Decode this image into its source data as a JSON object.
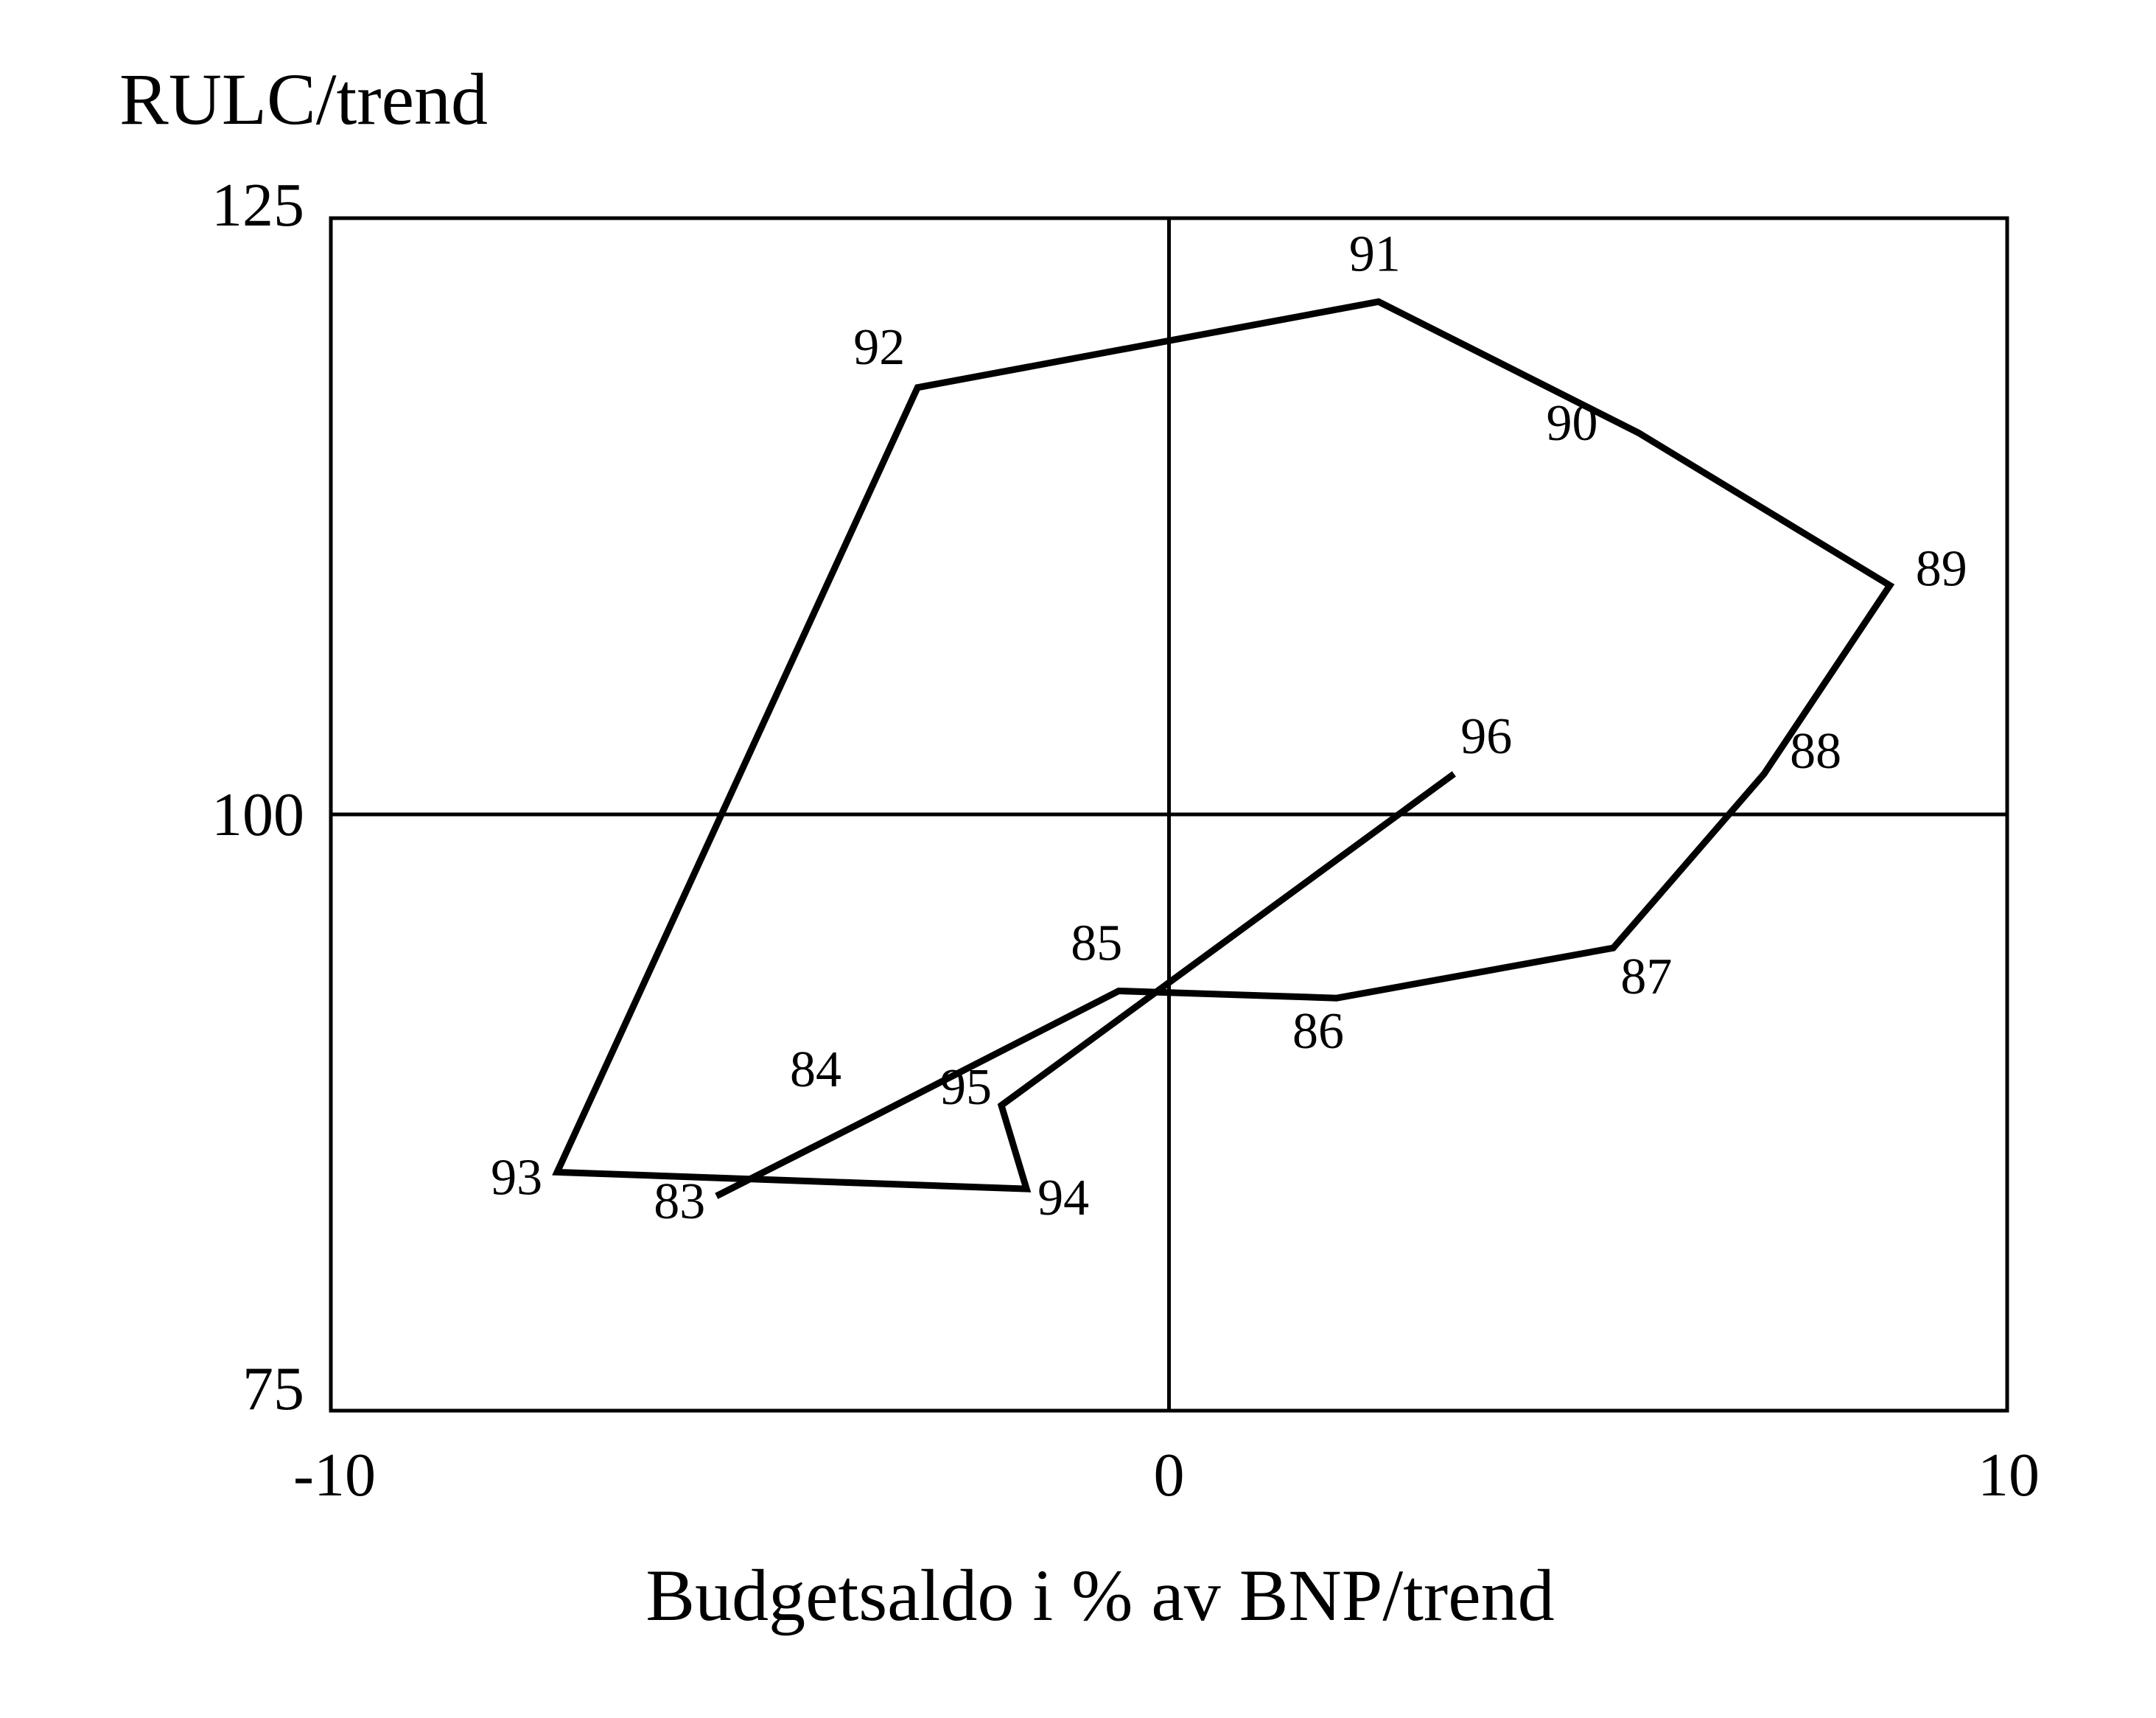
{
  "chart_data": {
    "type": "line",
    "ylabel": "RULC/trend",
    "xlabel": "Budgetsaldo i % av BNP/trend",
    "xlim": [
      -10,
      10
    ],
    "ylim": [
      75,
      125
    ],
    "x_ticks": [
      {
        "value": -10,
        "label": "-10"
      },
      {
        "value": 0,
        "label": "0"
      },
      {
        "value": 10,
        "label": "10"
      }
    ],
    "y_ticks": [
      {
        "value": 75,
        "label": "75"
      },
      {
        "value": 100,
        "label": "100"
      },
      {
        "value": 125,
        "label": "125"
      }
    ],
    "reference_lines": {
      "x": 0,
      "y": 100
    },
    "grid": false,
    "legend": "none",
    "line_color": "#000000",
    "series": [
      {
        "points": [
          {
            "label": "83",
            "x": -5.4,
            "y": 84.0
          },
          {
            "label": "84",
            "x": -3.6,
            "y": 87.2
          },
          {
            "label": "85",
            "x": -0.6,
            "y": 92.6
          },
          {
            "label": "86",
            "x": 2.0,
            "y": 92.3
          },
          {
            "label": "87",
            "x": 5.3,
            "y": 94.4
          },
          {
            "label": "88",
            "x": 7.1,
            "y": 101.7
          },
          {
            "label": "89",
            "x": 8.6,
            "y": 109.6
          },
          {
            "label": "90",
            "x": 5.6,
            "y": 116.0
          },
          {
            "label": "91",
            "x": 2.5,
            "y": 121.5
          },
          {
            "label": "92",
            "x": -3.0,
            "y": 117.9
          },
          {
            "label": "93",
            "x": -7.3,
            "y": 85.0
          },
          {
            "label": "94",
            "x": -1.7,
            "y": 84.3
          },
          {
            "label": "95",
            "x": -2.0,
            "y": 87.8
          },
          {
            "label": "96",
            "x": 3.4,
            "y": 101.7
          }
        ]
      }
    ]
  }
}
